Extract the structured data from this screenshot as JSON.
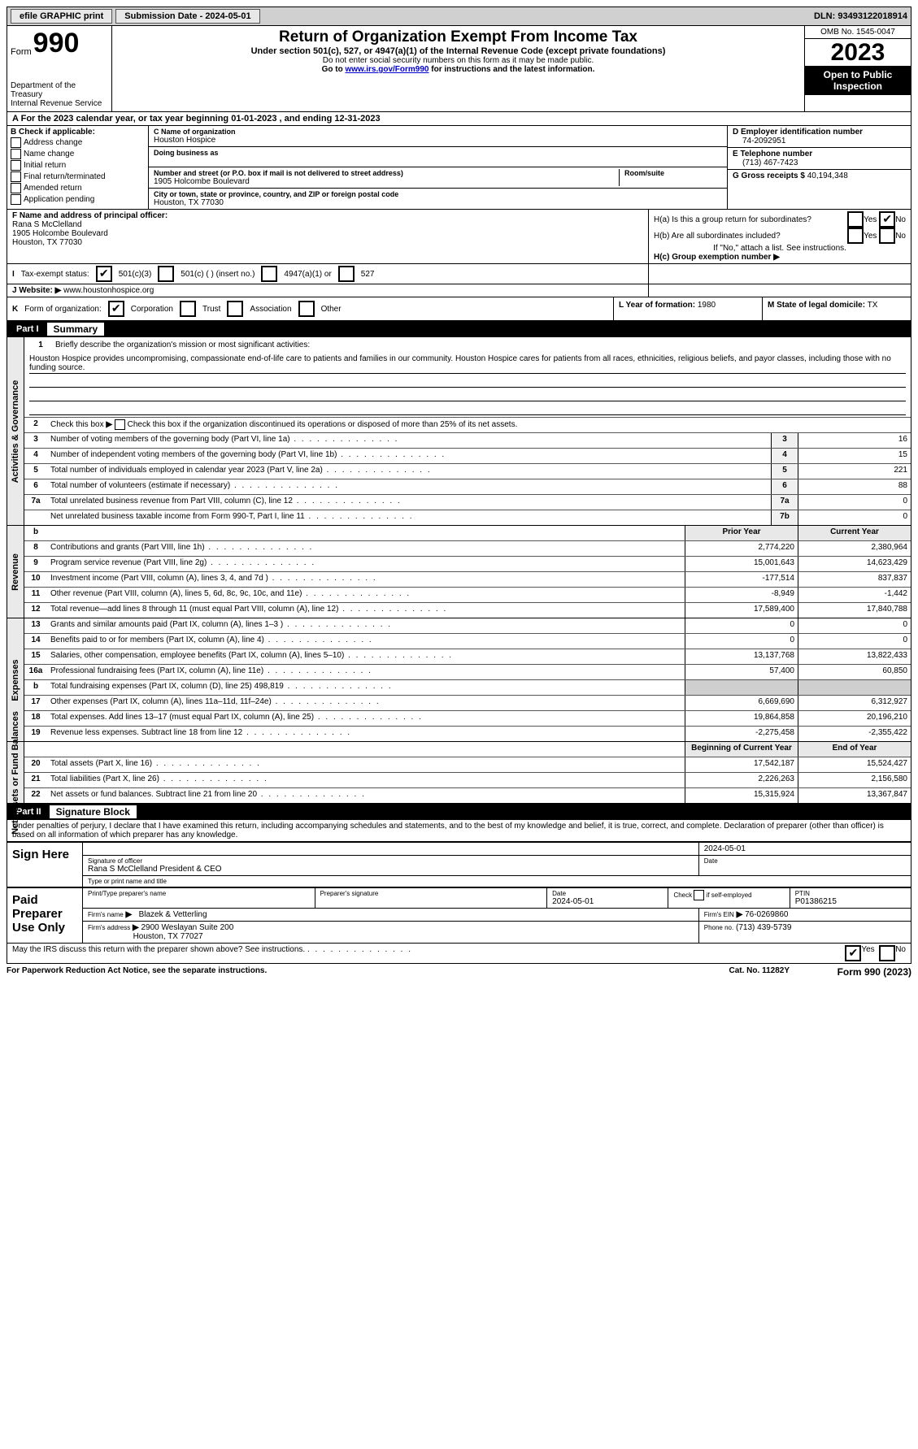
{
  "topbar": {
    "efile": "efile GRAPHIC print",
    "submission": "Submission Date - 2024-05-01",
    "dln": "DLN: 93493122018914"
  },
  "header": {
    "form_word": "Form",
    "form_no": "990",
    "dept": "Department of the Treasury",
    "irs": "Internal Revenue Service",
    "title": "Return of Organization Exempt From Income Tax",
    "subtitle": "Under section 501(c), 527, or 4947(a)(1) of the Internal Revenue Code (except private foundations)",
    "note1": "Do not enter social security numbers on this form as it may be made public.",
    "note2_pre": "Go to ",
    "note2_link": "www.irs.gov/Form990",
    "note2_post": " for instructions and the latest information.",
    "omb": "OMB No. 1545-0047",
    "year": "2023",
    "open": "Open to Public Inspection"
  },
  "rowA": "For the 2023 calendar year, or tax year beginning 01-01-2023    , and ending 12-31-2023",
  "boxB": {
    "label": "Check if applicable:",
    "items": [
      "Address change",
      "Name change",
      "Initial return",
      "Final return/terminated",
      "Amended return",
      "Application pending"
    ],
    "lead": "B"
  },
  "boxC": {
    "label": "C Name of organization",
    "name": "Houston Hospice",
    "dba_label": "Doing business as",
    "addr_label": "Number and street (or P.O. box if mail is not delivered to street address)",
    "room_label": "Room/suite",
    "addr": "1905 Holcombe Boulevard",
    "city_label": "City or town, state or province, country, and ZIP or foreign postal code",
    "city": "Houston, TX  77030"
  },
  "boxD": {
    "label": "D Employer identification number",
    "val": "74-2092951"
  },
  "boxE": {
    "label": "E Telephone number",
    "val": "(713) 467-7423"
  },
  "boxG": {
    "label": "G Gross receipts $",
    "val": "40,194,348"
  },
  "boxF": {
    "label": "F  Name and address of principal officer:",
    "l1": "Rana S McClelland",
    "l2": "1905 Holcombe Boulevard",
    "l3": "Houston, TX  77030"
  },
  "boxH": {
    "a": "H(a)  Is this a group return for subordinates?",
    "b": "H(b)  Are all subordinates included?",
    "bnote": "If \"No,\" attach a list. See instructions.",
    "c": "H(c)  Group exemption number ",
    "yes": "Yes",
    "no": "No"
  },
  "rowI": {
    "label": "Tax-exempt status:",
    "opt1": "501(c)(3)",
    "opt2": "501(c) (  ) (insert no.)",
    "opt3": "4947(a)(1) or",
    "opt4": "527",
    "lead": "I"
  },
  "rowJ": {
    "label": "Website:",
    "val": "www.houstonhospice.org",
    "lead": "J"
  },
  "rowK": {
    "label": "Form of organization:",
    "opts": [
      "Corporation",
      "Trust",
      "Association",
      "Other"
    ],
    "lead": "K"
  },
  "rowL": {
    "label": "L Year of formation:",
    "val": "1980"
  },
  "rowM": {
    "label": "M State of legal domicile:",
    "val": "TX"
  },
  "part1": {
    "no": "Part I",
    "title": "Summary"
  },
  "activities": {
    "vlabel": "Activities & Governance",
    "l1": "Briefly describe the organization's mission or most significant activities:",
    "mission": "Houston Hospice provides uncompromising, compassionate end-of-life care to patients and families in our community. Houston Hospice cares for patients from all races, ethnicities, religious beliefs, and payor classes, including those with no funding source.",
    "l2": "Check this box       if the organization discontinued its operations or disposed of more than 25% of its net assets.",
    "l3": "Number of voting members of the governing body (Part VI, line 1a)",
    "l4": "Number of independent voting members of the governing body (Part VI, line 1b)",
    "l5": "Total number of individuals employed in calendar year 2023 (Part V, line 2a)",
    "l6": "Total number of volunteers (estimate if necessary)",
    "l7a": "Total unrelated business revenue from Part VIII, column (C), line 12",
    "l7b": "Net unrelated business taxable income from Form 990-T, Part I, line 11",
    "v3": "16",
    "v4": "15",
    "v5": "221",
    "v6": "88",
    "v7a": "0",
    "v7b": "0"
  },
  "colhdrs": {
    "prior": "Prior Year",
    "current": "Current Year",
    "boy": "Beginning of Current Year",
    "eoy": "End of Year"
  },
  "revenue": {
    "vlabel": "Revenue",
    "rows": [
      {
        "n": "8",
        "t": "Contributions and grants (Part VIII, line 1h)",
        "p": "2,774,220",
        "c": "2,380,964"
      },
      {
        "n": "9",
        "t": "Program service revenue (Part VIII, line 2g)",
        "p": "15,001,643",
        "c": "14,623,429"
      },
      {
        "n": "10",
        "t": "Investment income (Part VIII, column (A), lines 3, 4, and 7d )",
        "p": "-177,514",
        "c": "837,837"
      },
      {
        "n": "11",
        "t": "Other revenue (Part VIII, column (A), lines 5, 6d, 8c, 9c, 10c, and 11e)",
        "p": "-8,949",
        "c": "-1,442"
      },
      {
        "n": "12",
        "t": "Total revenue—add lines 8 through 11 (must equal Part VIII, column (A), line 12)",
        "p": "17,589,400",
        "c": "17,840,788"
      }
    ]
  },
  "expenses": {
    "vlabel": "Expenses",
    "rows": [
      {
        "n": "13",
        "t": "Grants and similar amounts paid (Part IX, column (A), lines 1–3 )",
        "p": "0",
        "c": "0"
      },
      {
        "n": "14",
        "t": "Benefits paid to or for members (Part IX, column (A), line 4)",
        "p": "0",
        "c": "0"
      },
      {
        "n": "15",
        "t": "Salaries, other compensation, employee benefits (Part IX, column (A), lines 5–10)",
        "p": "13,137,768",
        "c": "13,822,433"
      },
      {
        "n": "16a",
        "t": "Professional fundraising fees (Part IX, column (A), line 11e)",
        "p": "57,400",
        "c": "60,850"
      },
      {
        "n": "b",
        "t": "Total fundraising expenses (Part IX, column (D), line 25) 498,819",
        "grey": true
      },
      {
        "n": "17",
        "t": "Other expenses (Part IX, column (A), lines 11a–11d, 11f–24e)",
        "p": "6,669,690",
        "c": "6,312,927"
      },
      {
        "n": "18",
        "t": "Total expenses. Add lines 13–17 (must equal Part IX, column (A), line 25)",
        "p": "19,864,858",
        "c": "20,196,210"
      },
      {
        "n": "19",
        "t": "Revenue less expenses. Subtract line 18 from line 12",
        "p": "-2,275,458",
        "c": "-2,355,422"
      }
    ]
  },
  "netassets": {
    "vlabel": "Net Assets or Fund Balances",
    "rows": [
      {
        "n": "20",
        "t": "Total assets (Part X, line 16)",
        "p": "17,542,187",
        "c": "15,524,427"
      },
      {
        "n": "21",
        "t": "Total liabilities (Part X, line 26)",
        "p": "2,226,263",
        "c": "2,156,580"
      },
      {
        "n": "22",
        "t": "Net assets or fund balances. Subtract line 21 from line 20",
        "p": "15,315,924",
        "c": "13,367,847"
      }
    ]
  },
  "part2": {
    "no": "Part II",
    "title": "Signature Block"
  },
  "decl": "Under penalties of perjury, I declare that I have examined this return, including accompanying schedules and statements, and to the best of my knowledge and belief, it is true, correct, and complete. Declaration of preparer (other than officer) is based on all information of which preparer has any knowledge.",
  "sign": {
    "label": "Sign Here",
    "sigof": "Signature of officer",
    "date": "Date",
    "dateval": "2024-05-01",
    "name": "Rana S McClelland  President & CEO",
    "typelbl": "Type or print name and title"
  },
  "preparer": {
    "label": "Paid Preparer Use Only",
    "printlbl": "Print/Type preparer's name",
    "siglbl": "Preparer's signature",
    "datelbl": "Date",
    "dateval": "2024-05-01",
    "checklbl": "Check        if self-employed",
    "ptinlbl": "PTIN",
    "ptin": "P01386215",
    "firmlbl": "Firm's name",
    "firm": "Blazek & Vetterling",
    "einlbl": "Firm's EIN",
    "ein": "76-0269860",
    "addrlbl": "Firm's address",
    "addr1": "2900 Weslayan Suite 200",
    "addr2": "Houston, TX  77027",
    "phonelbl": "Phone no.",
    "phone": "(713) 439-5739"
  },
  "discuss": {
    "txt": "May the IRS discuss this return with the preparer shown above? See instructions.",
    "yes": "Yes",
    "no": "No"
  },
  "bottom": {
    "l": "For Paperwork Reduction Act Notice, see the separate instructions.",
    "c": "Cat. No. 11282Y",
    "r": "Form 990 (2023)"
  }
}
